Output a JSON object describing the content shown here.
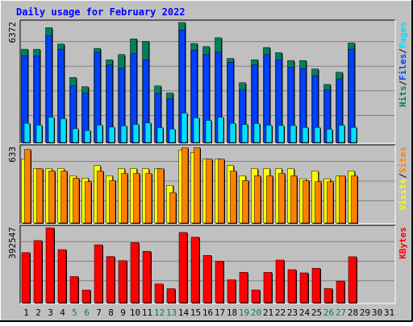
{
  "chart_data": {
    "type": "bar",
    "title": "Daily usage for February 2022",
    "colors": {
      "background": "#c0c0c0",
      "title": "#0000ff",
      "hits": "#00805c",
      "files": "#0040ff",
      "pages": "#00e0ff",
      "visits": "#ffff00",
      "sites": "#ff8000",
      "kbytes": "#ff0000",
      "weekend_label": "#00805c"
    },
    "categories": [
      "1",
      "2",
      "3",
      "4",
      "5",
      "6",
      "7",
      "8",
      "9",
      "10",
      "11",
      "12",
      "13",
      "14",
      "15",
      "16",
      "17",
      "18",
      "19",
      "20",
      "21",
      "22",
      "23",
      "24",
      "25",
      "26",
      "27",
      "28",
      "29",
      "30",
      "31"
    ],
    "weekend_days": [
      "5",
      "6",
      "12",
      "13",
      "19",
      "20",
      "26",
      "27"
    ],
    "panels": [
      {
        "id": "hits-files-pages",
        "ymax_label": "6372",
        "ymax": 6372,
        "legend": [
          "Pages",
          "/",
          "Files",
          "/",
          "Hits"
        ],
        "legend_colors": [
          "#00e0ff",
          "#000000",
          "#0040ff",
          "#000000",
          "#00805c"
        ],
        "series": [
          {
            "name": "Hits",
            "values": [
              4955,
              4955,
              6100,
              5235,
              3455,
              2965,
              5000,
              4395,
              4675,
              5505,
              5375,
              3005,
              2630,
              6375,
              5260,
              5095,
              5565,
              4465,
              3175,
              4395,
              5045,
              4770,
              4355,
              4355,
              3905,
              3085,
              3735,
              5285,
              0,
              0,
              0
            ]
          },
          {
            "name": "Files",
            "values": [
              4605,
              4605,
              5655,
              4955,
              3005,
              2630,
              4795,
              4120,
              3940,
              4720,
              4395,
              2605,
              2310,
              5980,
              4890,
              4670,
              4795,
              4260,
              2790,
              4120,
              4670,
              4395,
              3985,
              3930,
              3525,
              2795,
              3375,
              4955,
              0,
              0,
              0
            ]
          },
          {
            "name": "Pages",
            "values": [
              1020,
              920,
              1345,
              1270,
              735,
              640,
              925,
              820,
              890,
              960,
              1045,
              790,
              710,
              1565,
              1310,
              1175,
              1340,
              1020,
              960,
              1010,
              915,
              905,
              905,
              800,
              800,
              705,
              915,
              800,
              0,
              0,
              0
            ]
          }
        ]
      },
      {
        "id": "visits-sites",
        "ymax_label": "633",
        "ymax": 633,
        "legend": [
          "Sites",
          "/",
          "Visits"
        ],
        "legend_colors": [
          "#ff8000",
          "#000000",
          "#ffff00"
        ],
        "series": [
          {
            "name": "Visits",
            "values": [
              535,
              455,
              455,
              455,
              395,
              375,
              480,
              395,
              455,
              455,
              455,
              455,
              315,
              610,
              590,
              535,
              535,
              480,
              395,
              455,
              455,
              455,
              455,
              370,
              435,
              370,
              395,
              435,
              0,
              0,
              0
            ]
          },
          {
            "name": "Sites",
            "values": [
              615,
              455,
              435,
              435,
              375,
              345,
              435,
              355,
              415,
              415,
              415,
              455,
              255,
              630,
              630,
              535,
              535,
              435,
              355,
              395,
              395,
              415,
              395,
              355,
              345,
              345,
              395,
              395,
              0,
              0,
              0
            ]
          }
        ]
      },
      {
        "id": "kbytes",
        "ymax_label": "392547",
        "ymax": 392547,
        "legend": [
          "KBytes"
        ],
        "legend_colors": [
          "#ff0000"
        ],
        "series": [
          {
            "name": "KBytes",
            "values": [
              262580,
              325810,
              392547,
              278440,
              137200,
              66700,
              303600,
              242200,
              220500,
              315000,
              269500,
              98200,
              73500,
              368300,
              343800,
              248100,
              218400,
              120200,
              159400,
              67000,
              159000,
              223700,
              173200,
              156300,
              180500,
              74000,
              113200,
              240900,
              0,
              0,
              0
            ]
          }
        ]
      }
    ]
  }
}
